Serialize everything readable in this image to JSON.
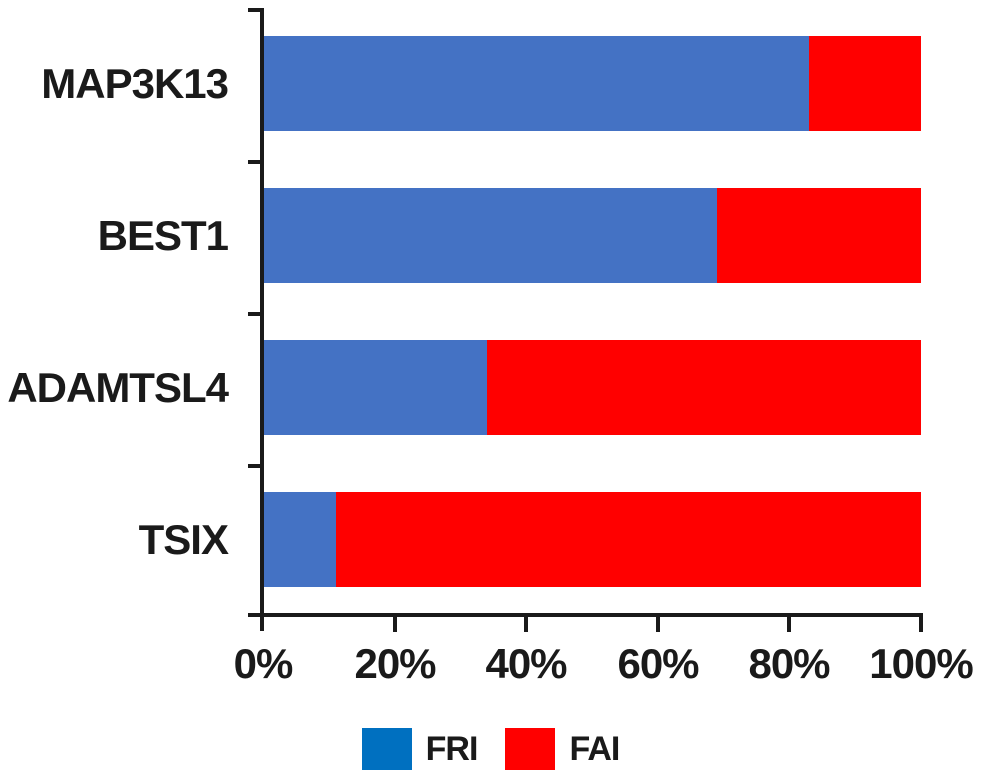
{
  "chart_data": {
    "type": "bar",
    "orientation": "horizontal",
    "stacked": true,
    "title": "",
    "xlabel": "",
    "ylabel": "",
    "categories": [
      "MAP3K13",
      "BEST1",
      "ADAMTSL4",
      "TSIX"
    ],
    "series": [
      {
        "name": "FRI",
        "color": "#4472C4",
        "values": [
          83,
          69,
          34,
          11
        ]
      },
      {
        "name": "FAI",
        "color": "#FF0000",
        "values": [
          17,
          31,
          66,
          89
        ]
      }
    ],
    "x_axis": {
      "min": 0,
      "max": 100,
      "unit": "%",
      "tick_step": 20,
      "tick_labels": [
        "0%",
        "20%",
        "40%",
        "60%",
        "80%",
        "100%"
      ]
    },
    "grid": false,
    "legend": {
      "position": "bottom",
      "entries": [
        {
          "label": "FRI",
          "color": "#0070C0"
        },
        {
          "label": "FAI",
          "color": "#FF0000"
        }
      ]
    },
    "axis_color": "#1a1a1a",
    "background_color": "#FFFFFF"
  }
}
